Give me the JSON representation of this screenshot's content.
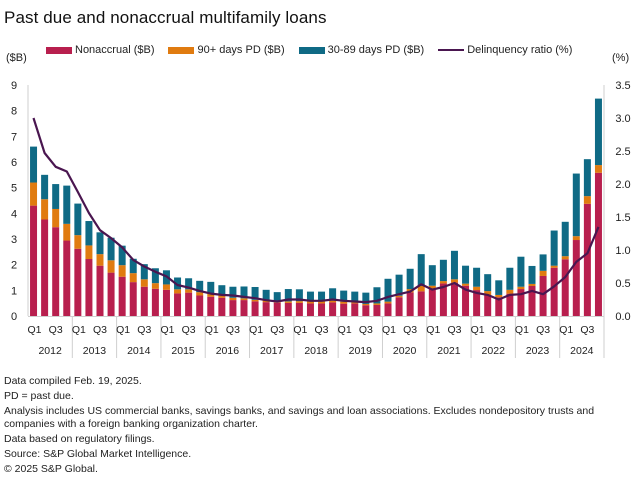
{
  "chart_data": {
    "type": "bar",
    "title": "Past due and nonaccrual multifamily loans",
    "left_axis_label": "($B)",
    "right_axis_label": "(%)",
    "ylim": [
      0,
      9
    ],
    "y2lim": [
      0,
      3.5
    ],
    "y_ticks": [
      "0",
      "1",
      "2",
      "3",
      "4",
      "5",
      "6",
      "7",
      "8",
      "9"
    ],
    "y2_ticks": [
      "0.0",
      "0.5",
      "1.0",
      "1.5",
      "2.0",
      "2.5",
      "3.0",
      "3.5"
    ],
    "years": [
      "2012",
      "2013",
      "2014",
      "2015",
      "2016",
      "2017",
      "2018",
      "2019",
      "2020",
      "2021",
      "2022",
      "2023",
      "2024"
    ],
    "quarter_tick_labels": [
      "Q1",
      "Q3"
    ],
    "legend_placement": "top",
    "colors": {
      "nonaccrual": "#b81f4e",
      "pd90": "#e07b10",
      "pd3089": "#0f6a85",
      "ratio": "#4a1650"
    },
    "series": [
      {
        "name": "Nonaccrual ($B)",
        "key": "nonaccrual",
        "stack": "stacked-bar",
        "values": [
          4.3,
          3.76,
          3.46,
          2.94,
          2.62,
          2.22,
          1.96,
          1.69,
          1.53,
          1.32,
          1.14,
          1.06,
          1.02,
          0.88,
          0.91,
          0.8,
          0.75,
          0.71,
          0.62,
          0.62,
          0.57,
          0.54,
          0.52,
          0.51,
          0.51,
          0.49,
          0.49,
          0.53,
          0.48,
          0.49,
          0.42,
          0.43,
          0.49,
          0.73,
          0.92,
          0.96,
          1.05,
          1.27,
          1.3,
          1.18,
          1.01,
          0.82,
          0.73,
          0.87,
          1.05,
          1.17,
          1.56,
          1.88,
          2.21,
          2.96,
          4.37,
          5.58
        ]
      },
      {
        "name": "90+ days PD ($B)",
        "key": "pd90",
        "stack": "stacked-bar",
        "values": [
          0.9,
          0.79,
          0.71,
          0.65,
          0.53,
          0.53,
          0.45,
          0.48,
          0.45,
          0.35,
          0.29,
          0.22,
          0.21,
          0.16,
          0.13,
          0.13,
          0.13,
          0.09,
          0.09,
          0.07,
          0.06,
          0.07,
          0.08,
          0.06,
          0.07,
          0.08,
          0.08,
          0.07,
          0.08,
          0.04,
          0.05,
          0.06,
          0.07,
          0.06,
          0.13,
          0.21,
          0.13,
          0.09,
          0.13,
          0.08,
          0.13,
          0.15,
          0.09,
          0.15,
          0.09,
          0.08,
          0.2,
          0.08,
          0.12,
          0.15,
          0.3,
          0.3
        ]
      },
      {
        "name": "30-89 days PD ($B)",
        "key": "pd3089",
        "stack": "stacked-bar",
        "values": [
          1.4,
          0.95,
          0.97,
          1.49,
          1.23,
          0.95,
          0.85,
          0.88,
          0.76,
          0.56,
          0.59,
          0.58,
          0.55,
          0.46,
          0.43,
          0.44,
          0.45,
          0.4,
          0.43,
          0.46,
          0.5,
          0.41,
          0.33,
          0.48,
          0.46,
          0.38,
          0.38,
          0.48,
          0.43,
          0.42,
          0.44,
          0.63,
          0.89,
          0.82,
          0.79,
          1.24,
          0.8,
          0.83,
          1.11,
          0.7,
          0.74,
          0.66,
          0.57,
          0.86,
          1.17,
          0.7,
          0.64,
          1.37,
          1.34,
          2.44,
          1.44,
          2.59
        ]
      },
      {
        "name": "Delinquency ratio (%)",
        "key": "ratio",
        "axis": "right",
        "type": "line",
        "values": [
          3.0,
          2.47,
          2.26,
          2.19,
          1.88,
          1.56,
          1.3,
          1.18,
          1.04,
          0.85,
          0.75,
          0.67,
          0.6,
          0.47,
          0.43,
          0.38,
          0.34,
          0.32,
          0.31,
          0.29,
          0.27,
          0.24,
          0.22,
          0.25,
          0.25,
          0.23,
          0.23,
          0.25,
          0.23,
          0.22,
          0.21,
          0.23,
          0.29,
          0.33,
          0.37,
          0.48,
          0.4,
          0.44,
          0.5,
          0.4,
          0.35,
          0.32,
          0.25,
          0.32,
          0.33,
          0.38,
          0.33,
          0.45,
          0.59,
          0.82,
          0.95,
          1.35
        ]
      }
    ]
  },
  "legend": {
    "items": [
      "Nonaccrual ($B)",
      "90+ days PD ($B)",
      "30-89 days PD ($B)",
      "Delinquency ratio (%)"
    ]
  },
  "footer": {
    "compiled": "Data compiled Feb. 19, 2025.",
    "pd_note": "PD = past due.",
    "analysis": "Analysis includes US commercial banks, savings banks, and savings and loan associations. Excludes nondepository trusts and companies with a foreign banking organization charter.",
    "basis": "Data based on regulatory filings.",
    "source": "Source: S&P Global Market Intelligence.",
    "copyright": "© 2025 S&P Global."
  }
}
